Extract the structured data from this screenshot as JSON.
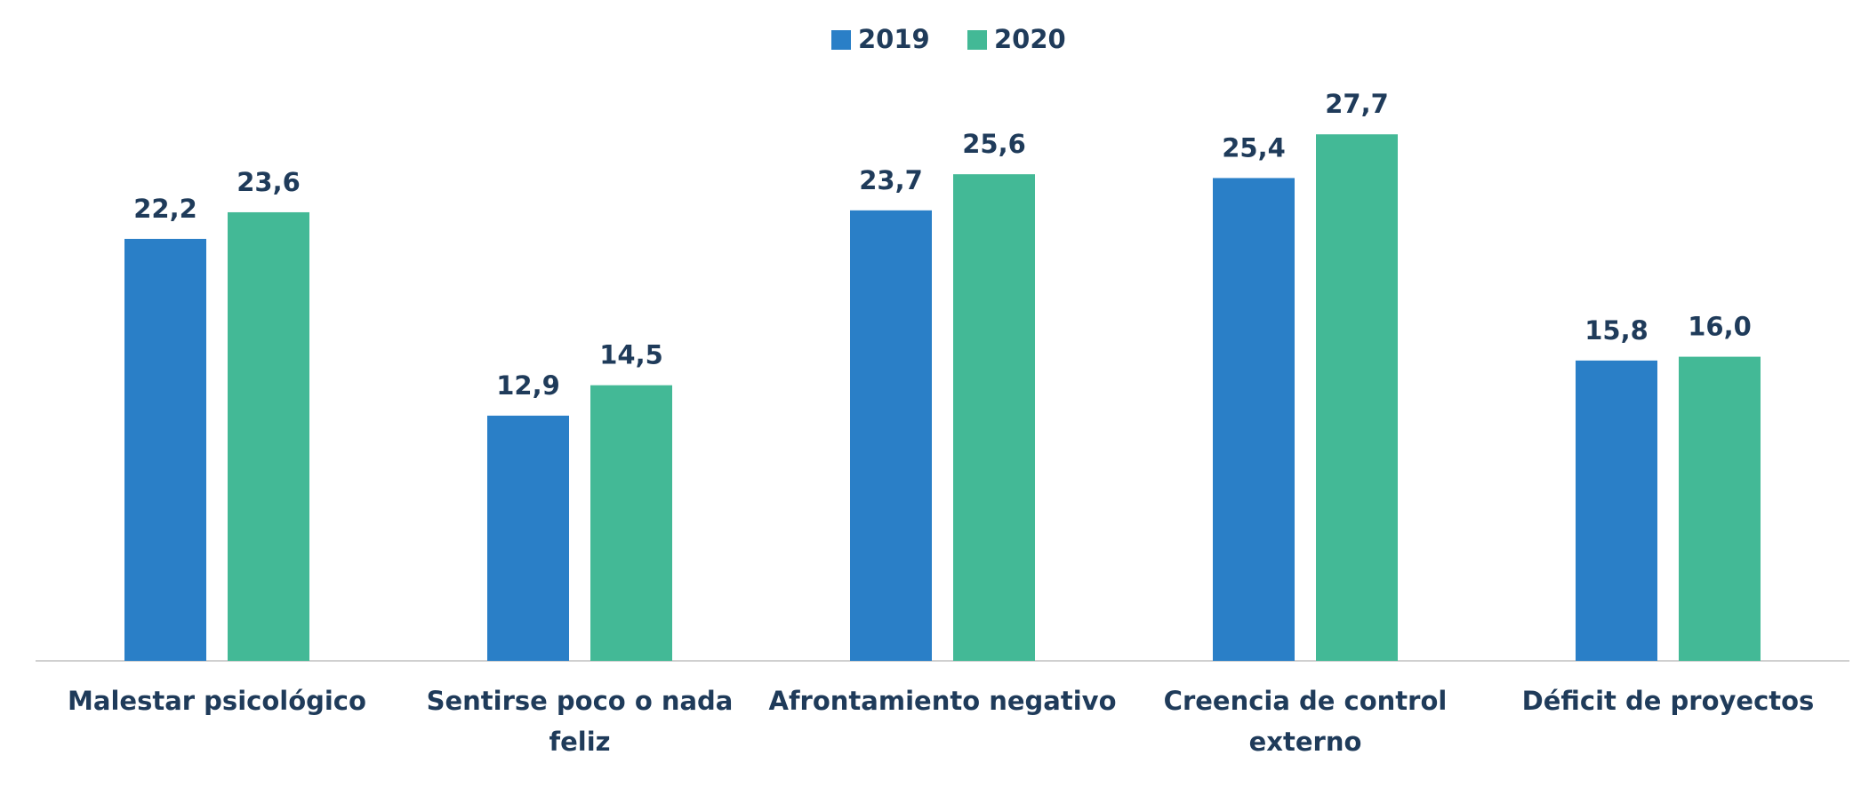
{
  "chart_data": {
    "type": "bar",
    "categories": [
      "Malestar psicológico",
      "Sentirse poco o nada feliz",
      "Afrontamiento negativo",
      "Creencia de control externo",
      "Déficit de proyectos"
    ],
    "series": [
      {
        "name": "2019",
        "color": "#2a7fc7",
        "values": [
          22.2,
          12.9,
          23.7,
          25.4,
          15.8
        ],
        "value_labels": [
          "22,2",
          "12,9",
          "23,7",
          "25,4",
          "15,8"
        ]
      },
      {
        "name": "2020",
        "color": "#43b996",
        "values": [
          23.6,
          14.5,
          25.6,
          27.7,
          16.0
        ],
        "value_labels": [
          "23,6",
          "14,5",
          "25,6",
          "27,7",
          "16,0"
        ]
      }
    ],
    "ylim": [
      0,
      30
    ],
    "legend": "top"
  }
}
